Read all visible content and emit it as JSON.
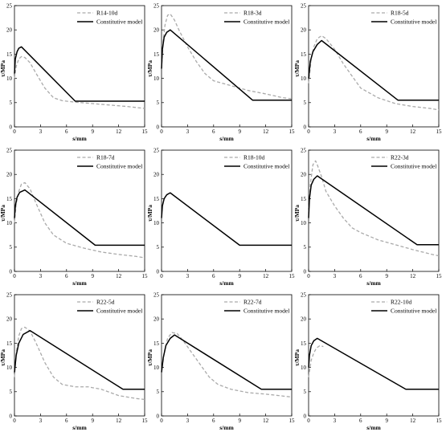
{
  "figure": {
    "x_label": "s/mm",
    "y_label": "τ/MPa"
  },
  "chart_data": [
    {
      "type": "line",
      "xlim": [
        0,
        15
      ],
      "ylim": [
        0,
        25
      ],
      "x_ticks": [
        "0",
        "3",
        "6",
        "9",
        "12",
        "15"
      ],
      "y_ticks": [
        "0",
        "5",
        "10",
        "15",
        "20",
        "25"
      ],
      "xlabel": "s/mm",
      "ylabel": "τ/MPa",
      "legend": "top-right",
      "series": [
        {
          "name": "R14-10d",
          "style": "dashed",
          "color": "#aaaaaa",
          "x": [
            0,
            0.2,
            0.5,
            0.8,
            1.2,
            1.8,
            2.5,
            3.5,
            4.5,
            5.5,
            7,
            9,
            11,
            13,
            15
          ],
          "y": [
            10,
            12.5,
            14,
            14.5,
            14.3,
            13.2,
            11,
            8,
            6,
            5.4,
            5.1,
            4.8,
            4.5,
            4.2,
            3.8
          ]
        },
        {
          "name": "Constitutive model",
          "style": "solid",
          "color": "#000000",
          "x": [
            0,
            0.1,
            0.3,
            0.5,
            0.8,
            7,
            15
          ],
          "y": [
            11,
            14,
            15.5,
            16.2,
            16.5,
            5.3,
            5.3
          ]
        }
      ]
    },
    {
      "type": "line",
      "xlim": [
        0,
        15
      ],
      "ylim": [
        0,
        25
      ],
      "x_ticks": [
        "0",
        "3",
        "6",
        "9",
        "12",
        "15"
      ],
      "y_ticks": [
        "0",
        "5",
        "10",
        "15",
        "20",
        "25"
      ],
      "xlabel": "s/mm",
      "ylabel": "τ/MPa",
      "legend": "top-right",
      "series": [
        {
          "name": "R18-3d",
          "style": "dashed",
          "color": "#aaaaaa",
          "x": [
            0,
            0.2,
            0.4,
            0.7,
            1,
            1.5,
            2,
            3,
            4,
            5,
            6,
            8,
            10,
            12,
            14,
            15
          ],
          "y": [
            12,
            18,
            21,
            23,
            23.3,
            22,
            20,
            16.5,
            13.5,
            11,
            9.5,
            8.5,
            7.5,
            6.8,
            6,
            5.8
          ]
        },
        {
          "name": "Constitutive model",
          "style": "solid",
          "color": "#000000",
          "x": [
            0,
            0.1,
            0.3,
            0.6,
            1,
            10.5,
            15
          ],
          "y": [
            12,
            16,
            18.5,
            19.5,
            20,
            5.5,
            5.5
          ]
        }
      ]
    },
    {
      "type": "line",
      "xlim": [
        0,
        15
      ],
      "ylim": [
        0,
        25
      ],
      "x_ticks": [
        "0",
        "3",
        "6",
        "9",
        "12",
        "15"
      ],
      "y_ticks": [
        "0",
        "5",
        "10",
        "15",
        "20",
        "25"
      ],
      "xlabel": "s/mm",
      "ylabel": "τ/MPa",
      "legend": "top-right",
      "series": [
        {
          "name": "R18-5d",
          "style": "dashed",
          "color": "#aaaaaa",
          "x": [
            0,
            0.3,
            0.6,
            1,
            1.5,
            2,
            3,
            4,
            5,
            6,
            8,
            10,
            12,
            14,
            15
          ],
          "y": [
            9,
            14,
            16.5,
            18.2,
            18.8,
            18.2,
            16,
            13,
            10.5,
            8,
            6,
            4.8,
            4.2,
            3.8,
            3.5
          ]
        },
        {
          "name": "Constitutive model",
          "style": "solid",
          "color": "#000000",
          "x": [
            0,
            0.2,
            0.5,
            1,
            1.5,
            10.3,
            15
          ],
          "y": [
            10,
            13.5,
            15.5,
            17,
            17.8,
            5.5,
            5.5
          ]
        }
      ]
    },
    {
      "type": "line",
      "xlim": [
        0,
        15
      ],
      "ylim": [
        0,
        25
      ],
      "x_ticks": [
        "0",
        "3",
        "6",
        "9",
        "12",
        "15"
      ],
      "y_ticks": [
        "0",
        "5",
        "10",
        "15",
        "20",
        "25"
      ],
      "xlabel": "s/mm",
      "ylabel": "τ/MPa",
      "legend": "top-right",
      "series": [
        {
          "name": "R18-7d",
          "style": "dashed",
          "color": "#aaaaaa",
          "x": [
            0,
            0.2,
            0.5,
            0.8,
            1.2,
            1.8,
            2.5,
            3.5,
            4.5,
            6,
            8,
            10,
            12,
            14,
            15
          ],
          "y": [
            10,
            14,
            16.5,
            18,
            18.3,
            17,
            14,
            10,
            7.5,
            5.8,
            4.8,
            4,
            3.5,
            3.1,
            2.8
          ]
        },
        {
          "name": "Constitutive model",
          "style": "solid",
          "color": "#000000",
          "x": [
            0,
            0.1,
            0.3,
            0.6,
            1.2,
            9.3,
            15
          ],
          "y": [
            11,
            13.5,
            15.3,
            16.3,
            16.8,
            5.4,
            5.4
          ]
        }
      ]
    },
    {
      "type": "line",
      "xlim": [
        0,
        15
      ],
      "ylim": [
        0,
        25
      ],
      "x_ticks": [
        "0",
        "3",
        "6",
        "9",
        "12",
        "15"
      ],
      "y_ticks": [
        "0",
        "5",
        "10",
        "15",
        "20",
        "25"
      ],
      "xlabel": "s/mm",
      "ylabel": "τ/MPa",
      "legend": "top-right",
      "series": [
        {
          "name": "R18-10d",
          "style": "dashed",
          "color": "#aaaaaa",
          "x": [],
          "y": []
        },
        {
          "name": "Constitutive model",
          "style": "solid",
          "color": "#000000",
          "x": [
            0,
            0.1,
            0.3,
            0.6,
            1,
            9,
            15
          ],
          "y": [
            11,
            13.5,
            15,
            15.8,
            16.2,
            5.4,
            5.4
          ]
        }
      ]
    },
    {
      "type": "line",
      "xlim": [
        0,
        15
      ],
      "ylim": [
        0,
        25
      ],
      "x_ticks": [
        "0",
        "3",
        "6",
        "9",
        "12",
        "15"
      ],
      "y_ticks": [
        "0",
        "5",
        "10",
        "15",
        "20",
        "25"
      ],
      "xlabel": "s/mm",
      "ylabel": "τ/MPa",
      "legend": "top-right",
      "series": [
        {
          "name": "R22-3d",
          "style": "dashed",
          "color": "#aaaaaa",
          "x": [
            0,
            0.2,
            0.5,
            0.8,
            1,
            1.5,
            2,
            3,
            4,
            5,
            6,
            8,
            10,
            12,
            14,
            15
          ],
          "y": [
            12,
            18,
            22,
            22.8,
            22,
            19.5,
            16.5,
            13.5,
            11,
            9,
            8,
            6.5,
            5.5,
            4.5,
            3.6,
            3.2
          ]
        },
        {
          "name": "Constitutive model",
          "style": "solid",
          "color": "#000000",
          "x": [
            0,
            0.1,
            0.3,
            0.6,
            1,
            12.5,
            15
          ],
          "y": [
            11,
            15,
            17.8,
            19,
            19.7,
            5.5,
            5.5
          ]
        }
      ]
    },
    {
      "type": "line",
      "xlim": [
        0,
        15
      ],
      "ylim": [
        0,
        25
      ],
      "x_ticks": [
        "0",
        "3",
        "6",
        "9",
        "12",
        "15"
      ],
      "y_ticks": [
        "0",
        "5",
        "10",
        "15",
        "20",
        "25"
      ],
      "xlabel": "s/mm",
      "ylabel": "τ/MPa",
      "legend": "top-right",
      "series": [
        {
          "name": "R22-5d",
          "style": "dashed",
          "color": "#aaaaaa",
          "x": [
            0,
            0.2,
            0.5,
            0.8,
            1.2,
            1.8,
            2.5,
            3.5,
            4.5,
            5.5,
            7,
            8.5,
            10,
            12,
            14,
            15
          ],
          "y": [
            8,
            13,
            16.5,
            18,
            18.3,
            17.5,
            15,
            11,
            8,
            6.5,
            6,
            6,
            5.5,
            4.2,
            3.6,
            3.4
          ]
        },
        {
          "name": "Constitutive model",
          "style": "solid",
          "color": "#000000",
          "x": [
            0,
            0.2,
            0.5,
            1,
            1.8,
            12.5,
            15
          ],
          "y": [
            9,
            12.5,
            15,
            16.8,
            17.6,
            5.5,
            5.5
          ]
        }
      ]
    },
    {
      "type": "line",
      "xlim": [
        0,
        15
      ],
      "ylim": [
        0,
        25
      ],
      "x_ticks": [
        "0",
        "3",
        "6",
        "9",
        "12",
        "15"
      ],
      "y_ticks": [
        "0",
        "5",
        "10",
        "15",
        "20",
        "25"
      ],
      "xlabel": "s/mm",
      "ylabel": "τ/MPa",
      "legend": "top-right",
      "series": [
        {
          "name": "R22-7d",
          "style": "dashed",
          "color": "#aaaaaa",
          "x": [
            0,
            0.3,
            0.7,
            1.2,
            1.8,
            2.5,
            3.5,
            4.5,
            5.5,
            6.5,
            8,
            10,
            12,
            14,
            15
          ],
          "y": [
            9,
            13,
            16,
            17.2,
            17,
            15.5,
            13,
            10.5,
            8,
            6.5,
            5.5,
            4.8,
            4.5,
            4.1,
            3.9
          ]
        },
        {
          "name": "Constitutive model",
          "style": "solid",
          "color": "#000000",
          "x": [
            0,
            0.2,
            0.5,
            1,
            1.5,
            11.5,
            15
          ],
          "y": [
            9,
            12,
            14.5,
            16,
            16.7,
            5.5,
            5.5
          ]
        }
      ]
    },
    {
      "type": "line",
      "xlim": [
        0,
        15
      ],
      "ylim": [
        0,
        25
      ],
      "x_ticks": [
        "0",
        "3",
        "6",
        "9",
        "12",
        "15"
      ],
      "y_ticks": [
        "0",
        "5",
        "10",
        "15",
        "20",
        "25"
      ],
      "xlabel": "s/mm",
      "ylabel": "τ/MPa",
      "legend": "top-right",
      "series": [
        {
          "name": "R22-10d",
          "style": "dashed",
          "color": "#aaaaaa",
          "x": [
            0,
            0.3,
            0.6,
            0.9,
            1.3,
            1.7
          ],
          "y": [
            8,
            11.5,
            13,
            14,
            14.5,
            14.3
          ]
        },
        {
          "name": "Constitutive model",
          "style": "solid",
          "color": "#000000",
          "x": [
            0,
            0.1,
            0.3,
            0.6,
            1,
            11.2,
            15
          ],
          "y": [
            10,
            12.5,
            14.5,
            15.5,
            16,
            5.5,
            5.5
          ]
        }
      ]
    }
  ]
}
